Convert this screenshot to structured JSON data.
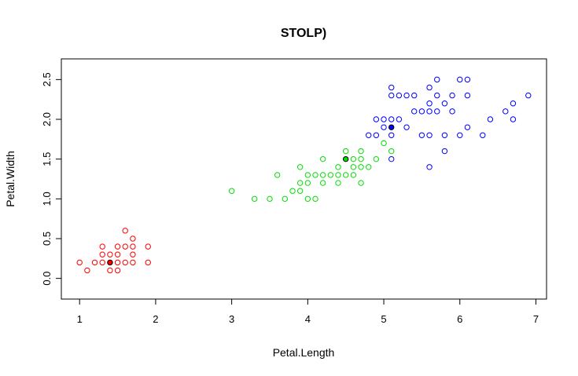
{
  "chart_data": {
    "type": "scatter",
    "title": "STOLP)",
    "xlabel": "Petal.Length",
    "ylabel": "Petal.Width",
    "xlim": [
      0.76,
      7.14
    ],
    "ylim": [
      -0.26,
      2.76
    ],
    "xticks": [
      1,
      2,
      3,
      4,
      5,
      6,
      7
    ],
    "yticks": [
      0.0,
      0.5,
      1.0,
      1.5,
      2.0,
      2.5
    ],
    "grid": false,
    "legend": "none",
    "series": [
      {
        "color": "#ff0000",
        "points": [
          [
            1.0,
            0.2
          ],
          [
            1.1,
            0.1
          ],
          [
            1.2,
            0.2
          ],
          [
            1.3,
            0.2
          ],
          [
            1.3,
            0.3
          ],
          [
            1.3,
            0.4
          ],
          [
            1.4,
            0.1
          ],
          [
            1.4,
            0.3
          ],
          [
            1.5,
            0.1
          ],
          [
            1.5,
            0.2
          ],
          [
            1.5,
            0.3
          ],
          [
            1.5,
            0.4
          ],
          [
            1.6,
            0.2
          ],
          [
            1.6,
            0.4
          ],
          [
            1.6,
            0.6
          ],
          [
            1.7,
            0.2
          ],
          [
            1.7,
            0.3
          ],
          [
            1.7,
            0.4
          ],
          [
            1.7,
            0.5
          ],
          [
            1.9,
            0.2
          ],
          [
            1.9,
            0.4
          ]
        ],
        "prototypes": [
          [
            1.4,
            0.2
          ]
        ]
      },
      {
        "color": "#00dd00",
        "points": [
          [
            3.0,
            1.1
          ],
          [
            3.3,
            1.0
          ],
          [
            3.5,
            1.0
          ],
          [
            3.6,
            1.3
          ],
          [
            3.7,
            1.0
          ],
          [
            3.8,
            1.1
          ],
          [
            3.9,
            1.1
          ],
          [
            3.9,
            1.2
          ],
          [
            3.9,
            1.4
          ],
          [
            4.0,
            1.0
          ],
          [
            4.0,
            1.2
          ],
          [
            4.0,
            1.3
          ],
          [
            4.1,
            1.0
          ],
          [
            4.1,
            1.3
          ],
          [
            4.2,
            1.2
          ],
          [
            4.2,
            1.3
          ],
          [
            4.2,
            1.5
          ],
          [
            4.3,
            1.3
          ],
          [
            4.4,
            1.2
          ],
          [
            4.4,
            1.3
          ],
          [
            4.4,
            1.4
          ],
          [
            4.5,
            1.3
          ],
          [
            4.5,
            1.6
          ],
          [
            4.6,
            1.3
          ],
          [
            4.6,
            1.4
          ],
          [
            4.6,
            1.5
          ],
          [
            4.7,
            1.2
          ],
          [
            4.7,
            1.4
          ],
          [
            4.7,
            1.5
          ],
          [
            4.7,
            1.6
          ],
          [
            4.8,
            1.4
          ],
          [
            4.9,
            1.5
          ],
          [
            5.0,
            1.7
          ],
          [
            5.1,
            1.6
          ]
        ],
        "prototypes": [
          [
            4.5,
            1.5
          ]
        ]
      },
      {
        "color": "#0000ff",
        "points": [
          [
            4.8,
            1.8
          ],
          [
            4.9,
            1.8
          ],
          [
            4.9,
            2.0
          ],
          [
            5.0,
            1.9
          ],
          [
            5.0,
            2.0
          ],
          [
            5.1,
            1.5
          ],
          [
            5.1,
            1.8
          ],
          [
            5.1,
            2.0
          ],
          [
            5.1,
            2.3
          ],
          [
            5.1,
            2.4
          ],
          [
            5.2,
            2.0
          ],
          [
            5.2,
            2.3
          ],
          [
            5.3,
            1.9
          ],
          [
            5.3,
            2.3
          ],
          [
            5.4,
            2.1
          ],
          [
            5.4,
            2.3
          ],
          [
            5.5,
            1.8
          ],
          [
            5.5,
            2.1
          ],
          [
            5.6,
            1.4
          ],
          [
            5.6,
            1.8
          ],
          [
            5.6,
            2.1
          ],
          [
            5.6,
            2.2
          ],
          [
            5.6,
            2.4
          ],
          [
            5.7,
            2.1
          ],
          [
            5.7,
            2.3
          ],
          [
            5.7,
            2.5
          ],
          [
            5.8,
            1.6
          ],
          [
            5.8,
            1.8
          ],
          [
            5.8,
            2.2
          ],
          [
            5.9,
            2.1
          ],
          [
            5.9,
            2.3
          ],
          [
            6.0,
            1.8
          ],
          [
            6.0,
            2.5
          ],
          [
            6.1,
            1.9
          ],
          [
            6.1,
            2.3
          ],
          [
            6.1,
            2.5
          ],
          [
            6.3,
            1.8
          ],
          [
            6.4,
            2.0
          ],
          [
            6.6,
            2.1
          ],
          [
            6.7,
            2.0
          ],
          [
            6.7,
            2.2
          ],
          [
            6.9,
            2.3
          ]
        ],
        "prototypes": [
          [
            5.1,
            1.9
          ]
        ]
      }
    ]
  }
}
